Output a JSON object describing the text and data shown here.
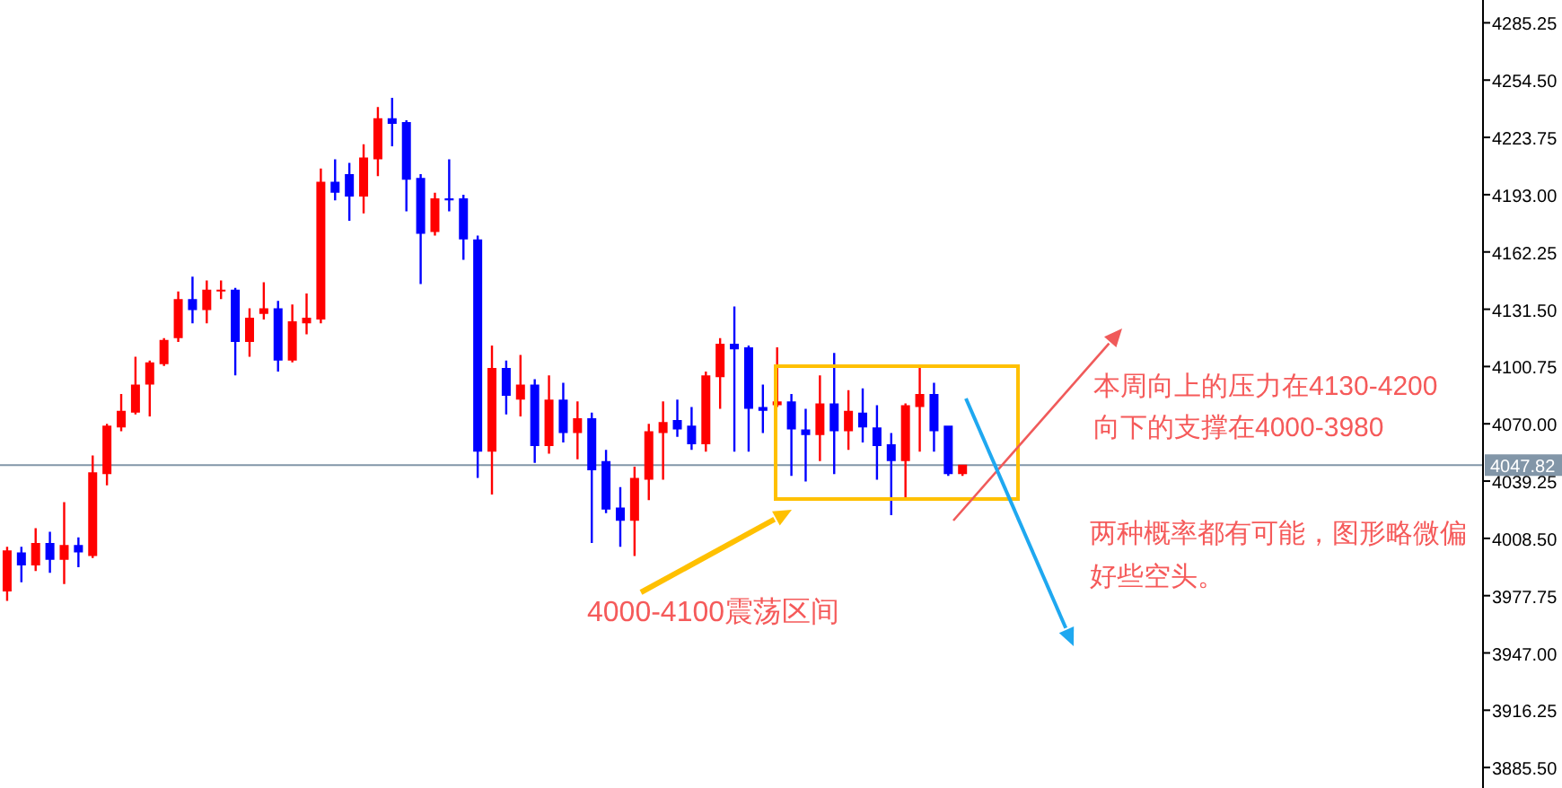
{
  "chart_data": {
    "type": "candlestick",
    "categories": [
      null,
      null,
      null,
      null,
      null,
      null,
      null,
      null,
      null,
      null,
      null,
      null,
      null,
      null,
      null,
      null,
      null,
      null,
      null,
      null,
      null,
      null,
      null,
      null,
      null,
      null,
      null,
      null,
      null,
      null,
      null,
      null,
      null,
      null,
      null,
      null,
      null,
      null,
      null,
      null,
      null,
      null,
      null,
      null,
      null,
      null,
      null,
      null,
      null,
      null,
      null,
      null,
      null,
      null,
      null,
      null,
      null,
      null,
      null,
      null,
      null,
      null,
      null,
      null,
      null,
      null,
      null,
      null,
      null,
      null,
      null,
      null,
      null,
      null,
      null,
      null,
      null,
      null,
      null,
      null,
      null,
      null,
      null,
      null,
      null,
      null,
      null,
      null,
      null,
      null,
      null,
      null,
      null,
      null,
      null,
      null,
      null,
      null,
      null,
      null,
      null,
      null,
      null,
      null
    ],
    "ohlc": [
      [
        3980,
        4004,
        3975,
        4002
      ],
      [
        4001,
        4004,
        3985,
        3994
      ],
      [
        3994,
        4014,
        3991,
        4006
      ],
      [
        4006,
        4012,
        3990,
        3997
      ],
      [
        3997,
        4028,
        3984,
        4005
      ],
      [
        4005,
        4009,
        3993,
        4001
      ],
      [
        3999,
        4053,
        3998,
        4044
      ],
      [
        4043,
        4070,
        4037,
        4069
      ],
      [
        4068,
        4086,
        4066,
        4077
      ],
      [
        4076,
        4106,
        4075,
        4091
      ],
      [
        4091,
        4104,
        4074,
        4103
      ],
      [
        4102,
        4116,
        4101,
        4115
      ],
      [
        4116,
        4141,
        4114,
        4137
      ],
      [
        4137,
        4149,
        4124,
        4131
      ],
      [
        4131,
        4147,
        4124,
        4142
      ],
      [
        4141,
        4147,
        4137,
        4142
      ],
      [
        4142,
        4143,
        4096,
        4114
      ],
      [
        4114,
        4132,
        4106,
        4127
      ],
      [
        4129,
        4146,
        4126,
        4132
      ],
      [
        4132,
        4136,
        4098,
        4104
      ],
      [
        4104,
        4134,
        4103,
        4125
      ],
      [
        4124,
        4140,
        4118,
        4127
      ],
      [
        4126,
        4207,
        4124,
        4200
      ],
      [
        4200,
        4212,
        4190,
        4194
      ],
      [
        4204,
        4210,
        4179,
        4192
      ],
      [
        4192,
        4220,
        4183,
        4213
      ],
      [
        4212,
        4240,
        4203,
        4234
      ],
      [
        4234,
        4245,
        4219,
        4231
      ],
      [
        4232,
        4233,
        4184,
        4201
      ],
      [
        4202,
        4204,
        4145,
        4172
      ],
      [
        4173,
        4194,
        4171,
        4191
      ],
      [
        4191,
        4212,
        4184,
        4190
      ],
      [
        4191,
        4193,
        4158,
        4169
      ],
      [
        4169,
        4171,
        4041,
        4055
      ],
      [
        4055,
        4112,
        4032,
        4100
      ],
      [
        4100,
        4104,
        4075,
        4085
      ],
      [
        4083,
        4107,
        4074,
        4091
      ],
      [
        4091,
        4094,
        4049,
        4058
      ],
      [
        4058,
        4096,
        4054,
        4083
      ],
      [
        4083,
        4092,
        4060,
        4065
      ],
      [
        4065,
        4082,
        4051,
        4073
      ],
      [
        4073,
        4076,
        4006,
        4045
      ],
      [
        4050,
        4056,
        4022,
        4024
      ],
      [
        4025,
        4036,
        4004,
        4018
      ],
      [
        4018,
        4047,
        3999,
        4041
      ],
      [
        4040,
        4070,
        4029,
        4066
      ],
      [
        4065,
        4082,
        4040,
        4071
      ],
      [
        4072,
        4083,
        4063,
        4067
      ],
      [
        4069,
        4079,
        4056,
        4059
      ],
      [
        4059,
        4098,
        4055,
        4096
      ],
      [
        4095,
        4116,
        4078,
        4113
      ],
      [
        4113,
        4133,
        4055,
        4110
      ],
      [
        4111,
        4112,
        4055,
        4078
      ],
      [
        4079,
        4091,
        4065,
        4077
      ],
      [
        4080,
        4111,
        4079,
        4082
      ],
      [
        4082,
        4086,
        4042,
        4067
      ],
      [
        4067,
        4078,
        4039,
        4064
      ],
      [
        4064,
        4096,
        4050,
        4081
      ],
      [
        4081,
        4108,
        4043,
        4066
      ],
      [
        4066,
        4088,
        4056,
        4077
      ],
      [
        4076,
        4089,
        4060,
        4068
      ],
      [
        4068,
        4080,
        4040,
        4058
      ],
      [
        4059,
        4065,
        4021,
        4050
      ],
      [
        4050,
        4081,
        4030,
        4080
      ],
      [
        4079,
        4100,
        4055,
        4086
      ],
      [
        4086,
        4092,
        4055,
        4066
      ],
      [
        4069,
        4069,
        4042,
        4043
      ],
      [
        4043,
        4048,
        4042,
        4048
      ],
      null,
      null,
      null,
      null,
      null,
      null,
      null,
      null,
      null,
      null,
      null,
      null,
      null,
      null,
      null,
      null,
      null,
      null,
      null,
      null,
      null,
      null,
      null,
      null,
      null,
      null,
      null,
      null,
      null,
      null,
      null,
      null,
      null,
      null,
      null,
      null
    ],
    "colors": [
      "#ff0000",
      "#0000ff",
      "#ff0000",
      "#0000ff",
      "#ff0000",
      "#0000ff",
      "#ff0000",
      "#ff0000",
      "#ff0000",
      "#ff0000",
      "#ff0000",
      "#ff0000",
      "#ff0000",
      "#0000ff",
      "#ff0000",
      "#ff0000",
      "#0000ff",
      "#ff0000",
      "#ff0000",
      "#0000ff",
      "#ff0000",
      "#ff0000",
      "#ff0000",
      "#0000ff",
      "#0000ff",
      "#ff0000",
      "#ff0000",
      "#0000ff",
      "#0000ff",
      "#0000ff",
      "#ff0000",
      "#0000ff",
      "#0000ff",
      "#0000ff",
      "#ff0000",
      "#0000ff",
      "#ff0000",
      "#0000ff",
      "#ff0000",
      "#0000ff",
      "#ff0000",
      "#0000ff",
      "#0000ff",
      "#0000ff",
      "#ff0000",
      "#ff0000",
      "#ff0000",
      "#0000ff",
      "#0000ff",
      "#ff0000",
      "#ff0000",
      "#0000ff",
      "#0000ff",
      "#0000ff",
      "#ff0000",
      "#0000ff",
      "#0000ff",
      "#ff0000",
      "#0000ff",
      "#ff0000",
      "#0000ff",
      "#0000ff",
      "#0000ff",
      "#ff0000",
      "#ff0000",
      "#0000ff",
      "#0000ff",
      "#ff0000",
      null,
      null,
      null,
      null,
      null,
      null,
      null,
      null,
      null,
      null,
      null,
      null,
      null,
      null,
      null,
      null,
      null,
      null,
      null,
      null,
      null,
      null,
      null,
      null,
      null,
      null,
      null,
      null,
      null,
      null,
      null,
      null,
      null,
      null,
      null,
      null
    ],
    "ylim": [
      3874.5,
      4297.5
    ],
    "yticks": [
      {
        "value": 4285.25,
        "label": "4285.25"
      },
      {
        "value": 4254.5,
        "label": "4254.50"
      },
      {
        "value": 4223.75,
        "label": "4223.75"
      },
      {
        "value": 4193,
        "label": "4193.00"
      },
      {
        "value": 4162.25,
        "label": "4162.25"
      },
      {
        "value": 4131.5,
        "label": "4131.50"
      },
      {
        "value": 4100.75,
        "label": "4100.75"
      },
      {
        "value": 4070,
        "label": "4070.00"
      },
      {
        "value": 4039.25,
        "label": "4039.25"
      },
      {
        "value": 4008.5,
        "label": "4008.50"
      },
      {
        "value": 3977.75,
        "label": "3977.75"
      },
      {
        "value": 3947,
        "label": "3947.00"
      },
      {
        "value": 3916.25,
        "label": "3916.25"
      },
      {
        "value": 3885.5,
        "label": "3885.50"
      }
    ],
    "tick_labels": "y",
    "ref_lines": [
      {
        "axis": "y",
        "value": 4047.82,
        "label": "4047.82",
        "color": "#8296a8"
      }
    ],
    "annotations": [
      "4000-4100震荡区间",
      "本周向上的压力在4130-4200",
      "向下的支撑在4000-3980",
      "两种概率都有可能，图形略微偏好些空头。"
    ]
  }
}
